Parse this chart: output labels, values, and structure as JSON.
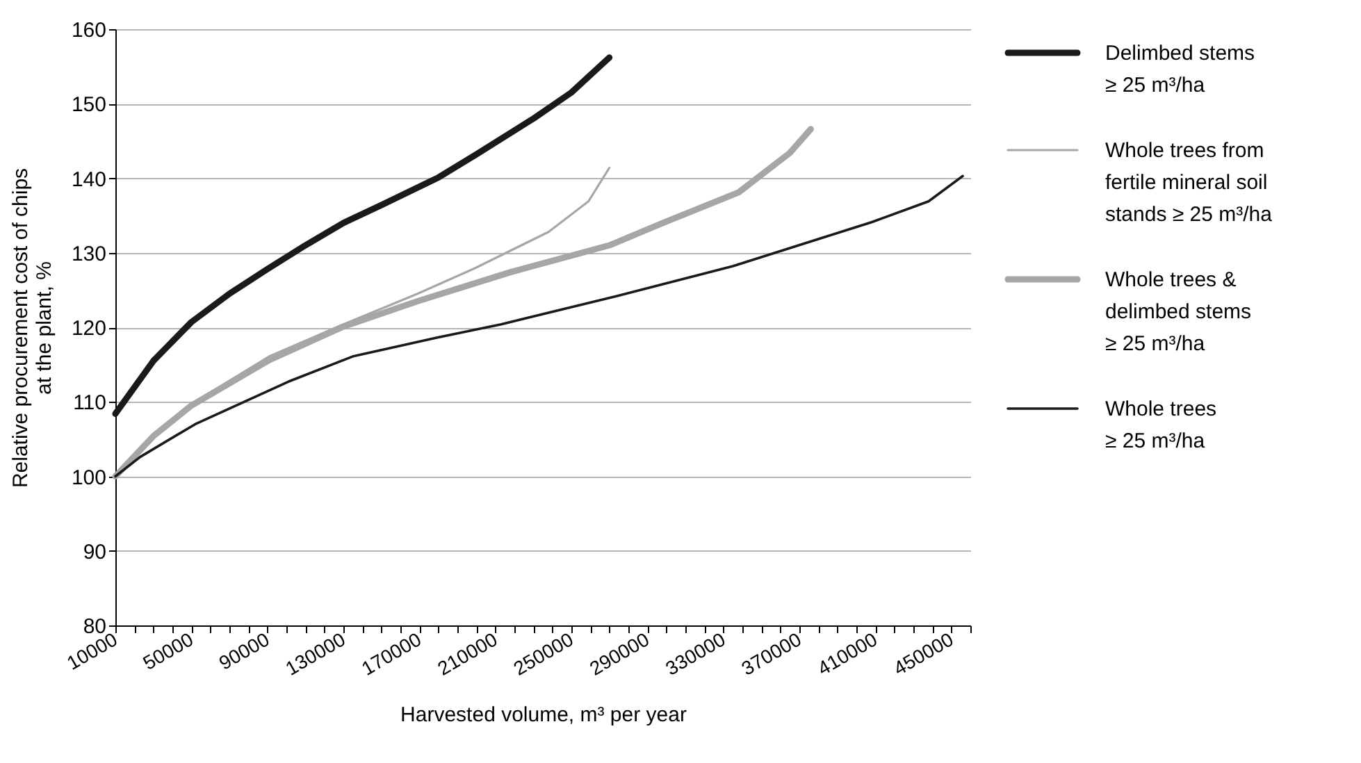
{
  "chart_data": {
    "type": "line",
    "xlabel": "Harvested volume, m³ per year",
    "ylabel": "Relative procurement cost of chips at the plant, %",
    "xlim": [
      10000,
      460000
    ],
    "xticks": [
      10000,
      {
        "value": 20000,
        "label": null
      },
      {
        "value": 30000,
        "label": null
      },
      {
        "value": 40000,
        "label": null
      },
      50000,
      {
        "value": 60000,
        "label": null
      },
      {
        "value": 70000,
        "label": null
      },
      {
        "value": 80000,
        "label": null
      },
      90000,
      {
        "value": 100000,
        "label": null
      },
      {
        "value": 110000,
        "label": null
      },
      {
        "value": 120000,
        "label": null
      },
      130000,
      {
        "value": 140000,
        "label": null
      },
      {
        "value": 150000,
        "label": null
      },
      {
        "value": 160000,
        "label": null
      },
      170000,
      {
        "value": 180000,
        "label": null
      },
      {
        "value": 190000,
        "label": null
      },
      {
        "value": 200000,
        "label": null
      },
      210000,
      {
        "value": 220000,
        "label": null
      },
      {
        "value": 230000,
        "label": null
      },
      {
        "value": 240000,
        "label": null
      },
      250000,
      {
        "value": 260000,
        "label": null
      },
      {
        "value": 270000,
        "label": null
      },
      {
        "value": 280000,
        "label": null
      },
      290000,
      {
        "value": 300000,
        "label": null
      },
      {
        "value": 310000,
        "label": null
      },
      {
        "value": 320000,
        "label": null
      },
      330000,
      {
        "value": 340000,
        "label": null
      },
      {
        "value": 350000,
        "label": null
      },
      {
        "value": 360000,
        "label": null
      },
      370000,
      {
        "value": 380000,
        "label": null
      },
      {
        "value": 390000,
        "label": null
      },
      {
        "value": 400000,
        "label": null
      },
      410000,
      {
        "value": 420000,
        "label": null
      },
      {
        "value": 430000,
        "label": null
      },
      {
        "value": 440000,
        "label": null
      },
      450000,
      {
        "value": 460000,
        "label": null
      }
    ],
    "ylim": [
      80,
      160
    ],
    "yticks": [
      80,
      90,
      100,
      110,
      120,
      130,
      140,
      150,
      160
    ],
    "grid": "y",
    "legend": "right",
    "series": [
      {
        "name": "Delimbed stems ≥ 25 m³/ha",
        "color": "#1a1a1a",
        "x": [
          10000,
          30000,
          50000,
          70000,
          90000,
          110000,
          130000,
          150000,
          180000,
          200000,
          230000,
          250000,
          270000
        ],
        "values": [
          108.4,
          115.5,
          120.7,
          124.5,
          127.8,
          131,
          134,
          136.4,
          140.1,
          143.2,
          148,
          151.5,
          156.2
        ]
      },
      {
        "name": "Whole trees from fertile mineral soil stands ≥ 25 m³/ha",
        "color": "#a6a6a6",
        "x": [
          10000,
          30000,
          50000,
          91000,
          130000,
          169000,
          199000,
          238000,
          259000,
          270000
        ],
        "values": [
          100,
          105.6,
          109.7,
          116.1,
          120.4,
          124.5,
          127.9,
          132.8,
          136.9,
          141.4
        ]
      },
      {
        "name": "Whole trees & delimbed stems ≥ 25 m³/ha",
        "color": "#a6a6a6",
        "x": [
          10000,
          30000,
          50000,
          91000,
          130000,
          169000,
          218000,
          270000,
          299000,
          338000,
          365000,
          376000
        ],
        "values": [
          100,
          105.4,
          109.5,
          115.6,
          120.1,
          123.5,
          127.4,
          131,
          134.1,
          138.1,
          143.4,
          146.6
        ]
      },
      {
        "name": "Whole trees ≥ 25 m³/ha",
        "color": "#1a1a1a",
        "x": [
          10000,
          23000,
          52000,
          101000,
          135000,
          179000,
          213000,
          274000,
          335000,
          408000,
          438000,
          456000
        ],
        "values": [
          100,
          102.6,
          107,
          112.7,
          116.1,
          118.6,
          120.4,
          124.2,
          128.2,
          134.1,
          136.9,
          140.3
        ]
      }
    ]
  }
}
